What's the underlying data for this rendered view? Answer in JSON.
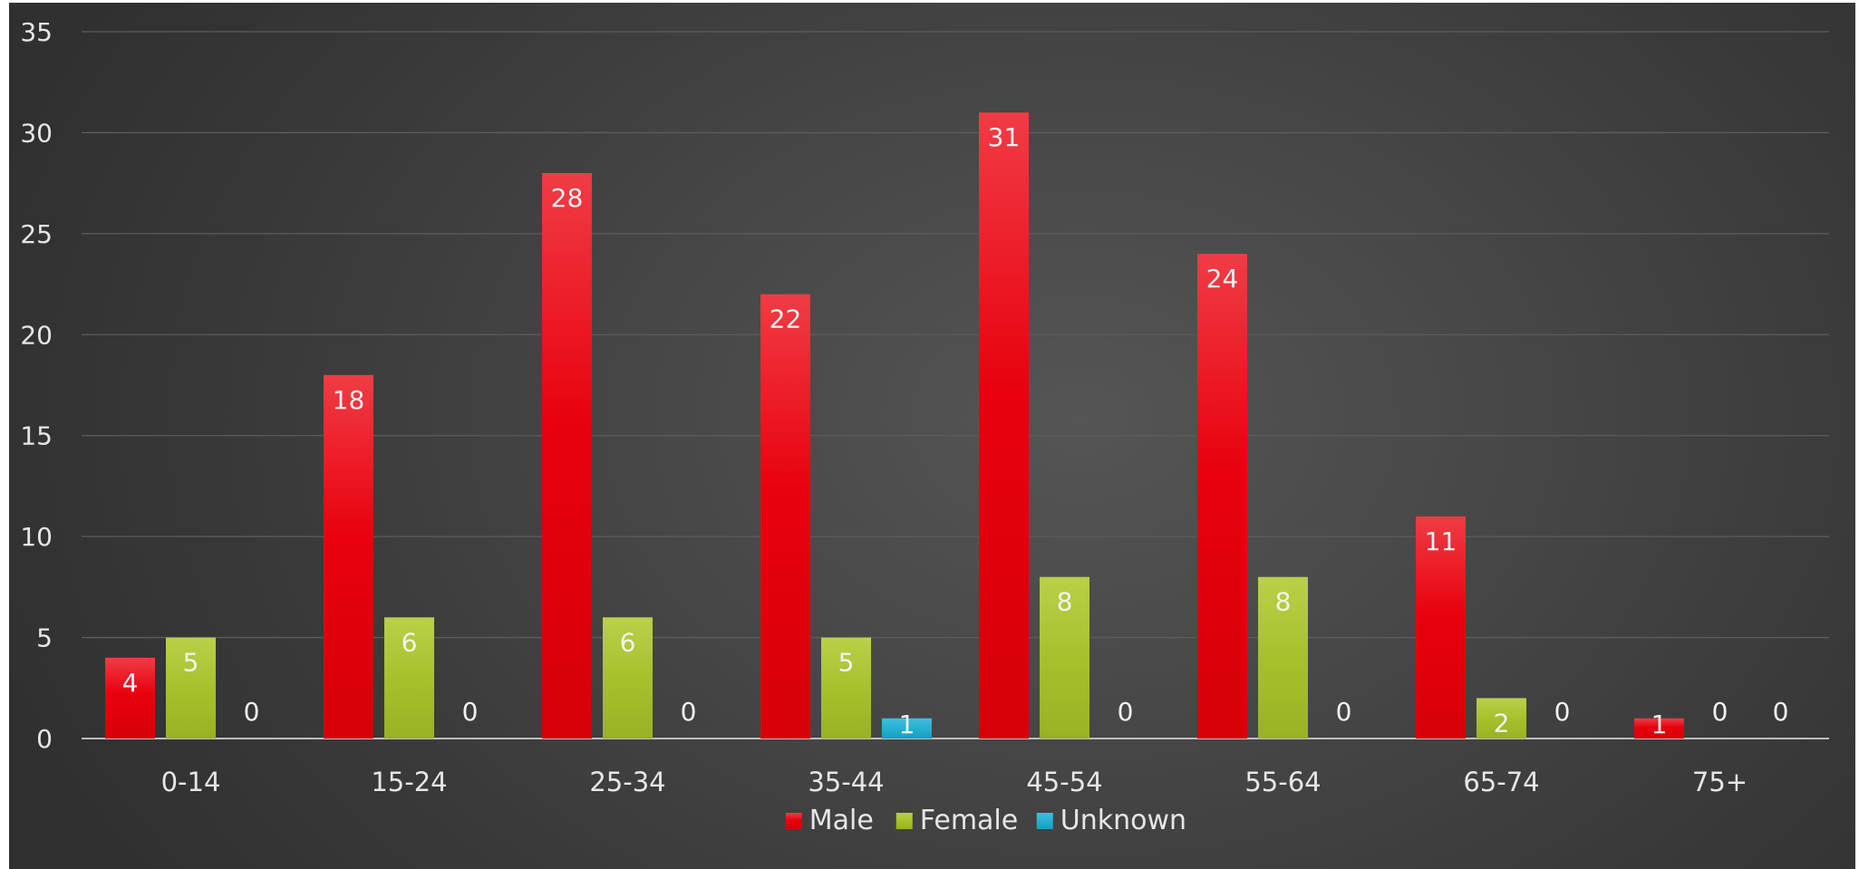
{
  "chart_data": {
    "type": "bar",
    "title": "",
    "xlabel": "",
    "ylabel": "",
    "categories": [
      "0-14",
      "15-24",
      "25-34",
      "35-44",
      "45-54",
      "55-64",
      "65-74",
      "75+"
    ],
    "series": [
      {
        "name": "Male",
        "values": [
          4,
          18,
          28,
          22,
          31,
          24,
          11,
          1
        ],
        "color": "#e8000e"
      },
      {
        "name": "Female",
        "values": [
          5,
          6,
          6,
          5,
          8,
          8,
          2,
          0
        ],
        "color": "#a7c12d"
      },
      {
        "name": "Unknown",
        "values": [
          0,
          0,
          0,
          1,
          0,
          0,
          0,
          0
        ],
        "color": "#1aaed1"
      }
    ],
    "ylim": [
      0,
      35
    ],
    "yticks": [
      "0",
      "5",
      "10",
      "15",
      "20",
      "25",
      "30",
      "35"
    ],
    "grid": true,
    "data_labels": true,
    "legend_position": "bottom",
    "background": "#3f3f3f"
  }
}
